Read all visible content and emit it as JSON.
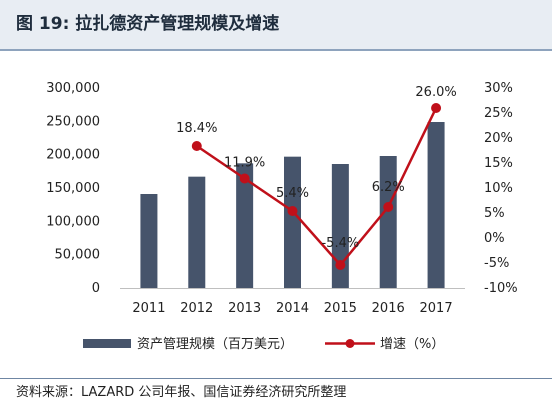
{
  "figure": {
    "title": "图 19:  拉扎德资产管理规模及增速",
    "source": "资料来源：LAZARD 公司年报、国信证券经济研究所整理"
  },
  "colors": {
    "bar": "#46546b",
    "line": "#c0101a",
    "title_bg": "#e8edf3",
    "border": "#8ea3bd"
  },
  "chart_data": {
    "type": "bar",
    "categories": [
      "2011",
      "2012",
      "2013",
      "2014",
      "2015",
      "2016",
      "2017"
    ],
    "series": [
      {
        "name": "资产管理规模（百万美元）",
        "type": "bar",
        "axis": "left",
        "values": [
          141000,
          167000,
          187000,
          197000,
          186000,
          198000,
          249000
        ]
      },
      {
        "name": "增速（%）",
        "type": "line",
        "axis": "right",
        "values": [
          null,
          18.4,
          11.9,
          5.4,
          -5.4,
          6.2,
          26.0
        ],
        "labels": [
          "",
          "18.4%",
          "11.9%",
          "5.4%",
          "-5.4%",
          "6.2%",
          "26.0%"
        ]
      }
    ],
    "left_axis": {
      "ylim": [
        0,
        300000
      ],
      "ticks": [
        "0",
        "50,000",
        "100,000",
        "150,000",
        "200,000",
        "250,000",
        "300,000"
      ]
    },
    "right_axis": {
      "ylim": [
        -10,
        30
      ],
      "ticks": [
        "-10%",
        "-5%",
        "0%",
        "5%",
        "10%",
        "15%",
        "20%",
        "25%",
        "30%"
      ]
    },
    "grid": false,
    "legend_position": "bottom"
  }
}
